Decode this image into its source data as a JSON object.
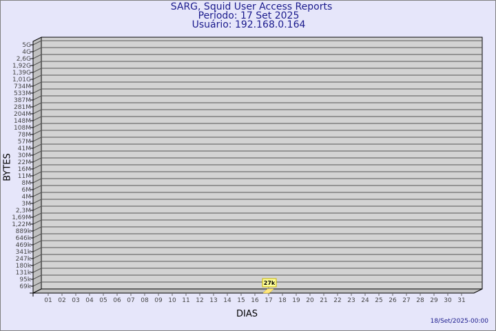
{
  "header": {
    "title": "SARG, Squid User Access Reports",
    "period": "Período: 17 Set 2025",
    "user": "Usuário: 192.168.0.164"
  },
  "footer": {
    "timestamp": "18/Set/2025-00:00"
  },
  "colors": {
    "background": "#e6e6fa",
    "title": "#1a1a8c",
    "plot": "#d3d3d3",
    "bar": "#ffe680",
    "data_label_bg": "#ffff99"
  },
  "chart_data": {
    "type": "bar",
    "xlabel": "DIAS",
    "ylabel": "BYTES",
    "y_scale": "log",
    "grid": true,
    "categories": [
      "01",
      "02",
      "03",
      "04",
      "05",
      "06",
      "07",
      "08",
      "09",
      "10",
      "11",
      "12",
      "13",
      "14",
      "15",
      "16",
      "17",
      "18",
      "19",
      "20",
      "21",
      "22",
      "23",
      "24",
      "25",
      "26",
      "27",
      "28",
      "29",
      "30",
      "31"
    ],
    "values": [
      0,
      0,
      0,
      0,
      0,
      0,
      0,
      0,
      0,
      0,
      0,
      0,
      0,
      0,
      0,
      0,
      27000,
      0,
      0,
      0,
      0,
      0,
      0,
      0,
      0,
      0,
      0,
      0,
      0,
      0,
      0
    ],
    "data_labels": {
      "17": "27k"
    },
    "y_tick_labels": [
      "5G",
      "4G",
      "2,6G",
      "1,92G",
      "1,39G",
      "1,01G",
      "734M",
      "533M",
      "387M",
      "281M",
      "204M",
      "148M",
      "108M",
      "78M",
      "57M",
      "41M",
      "30M",
      "22M",
      "16M",
      "11M",
      "8M",
      "6M",
      "4M",
      "3M",
      "2,3M",
      "1,69M",
      "1,22M",
      "889k",
      "646k",
      "469k",
      "341k",
      "247k",
      "180k",
      "131k",
      "95k",
      "69k"
    ]
  }
}
